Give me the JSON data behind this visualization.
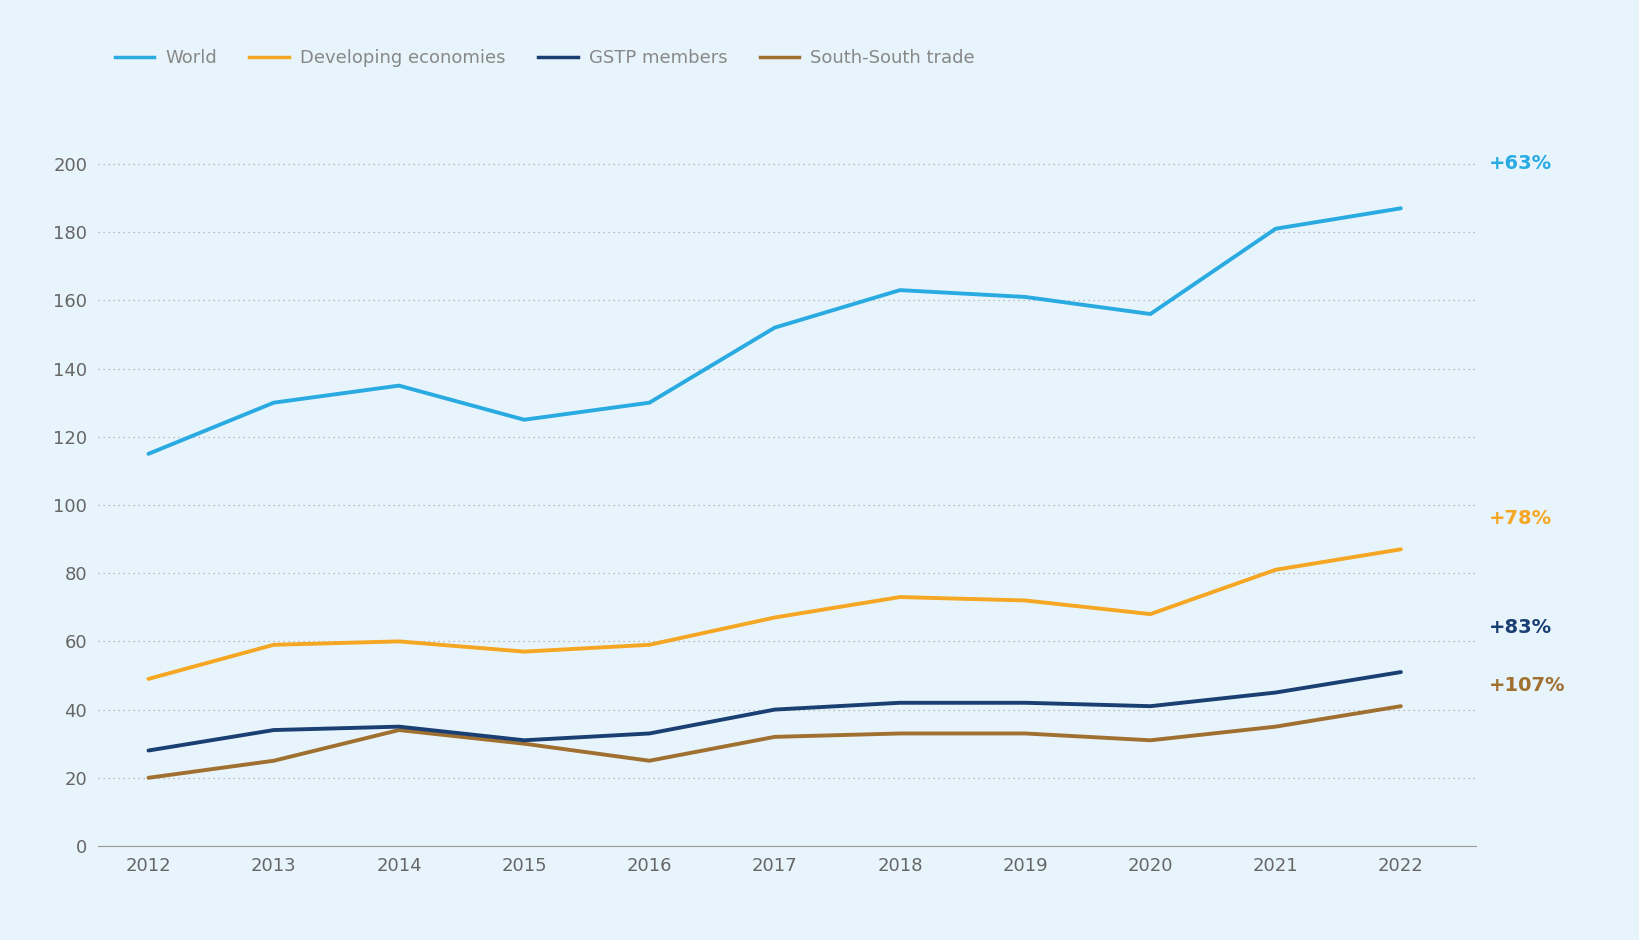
{
  "years": [
    2012,
    2013,
    2014,
    2015,
    2016,
    2017,
    2018,
    2019,
    2020,
    2021,
    2022
  ],
  "world": [
    115,
    130,
    135,
    125,
    130,
    152,
    163,
    161,
    156,
    181,
    187
  ],
  "developing": [
    49,
    59,
    60,
    57,
    59,
    67,
    73,
    72,
    68,
    81,
    87
  ],
  "gstp": [
    28,
    34,
    35,
    31,
    33,
    40,
    42,
    42,
    41,
    45,
    51
  ],
  "south_south": [
    20,
    25,
    34,
    30,
    25,
    32,
    33,
    33,
    31,
    35,
    41
  ],
  "world_color": "#29ABE2",
  "developing_color": "#F5A623",
  "gstp_color": "#1A3F72",
  "south_south_color": "#A07030",
  "annotation_world_color": "#29ABE2",
  "annotation_developing_color": "#F5A623",
  "annotation_gstp_color": "#1A3F72",
  "annotation_south_south_color": "#A07030",
  "world_label": "World",
  "developing_label": "Developing economies",
  "gstp_label": "GSTP members",
  "south_south_label": "South-South trade",
  "world_pct": "+63%",
  "developing_pct": "+78%",
  "gstp_pct": "+83%",
  "south_south_pct": "+107%",
  "ylim": [
    0,
    215
  ],
  "yticks": [
    0,
    20,
    40,
    60,
    80,
    100,
    120,
    140,
    160,
    180,
    200
  ],
  "background_color": "#E8F4FB",
  "line_width": 2.8,
  "bottom_bar_color": "#0077B6",
  "legend_label_color": "#888888",
  "tick_color": "#666666"
}
